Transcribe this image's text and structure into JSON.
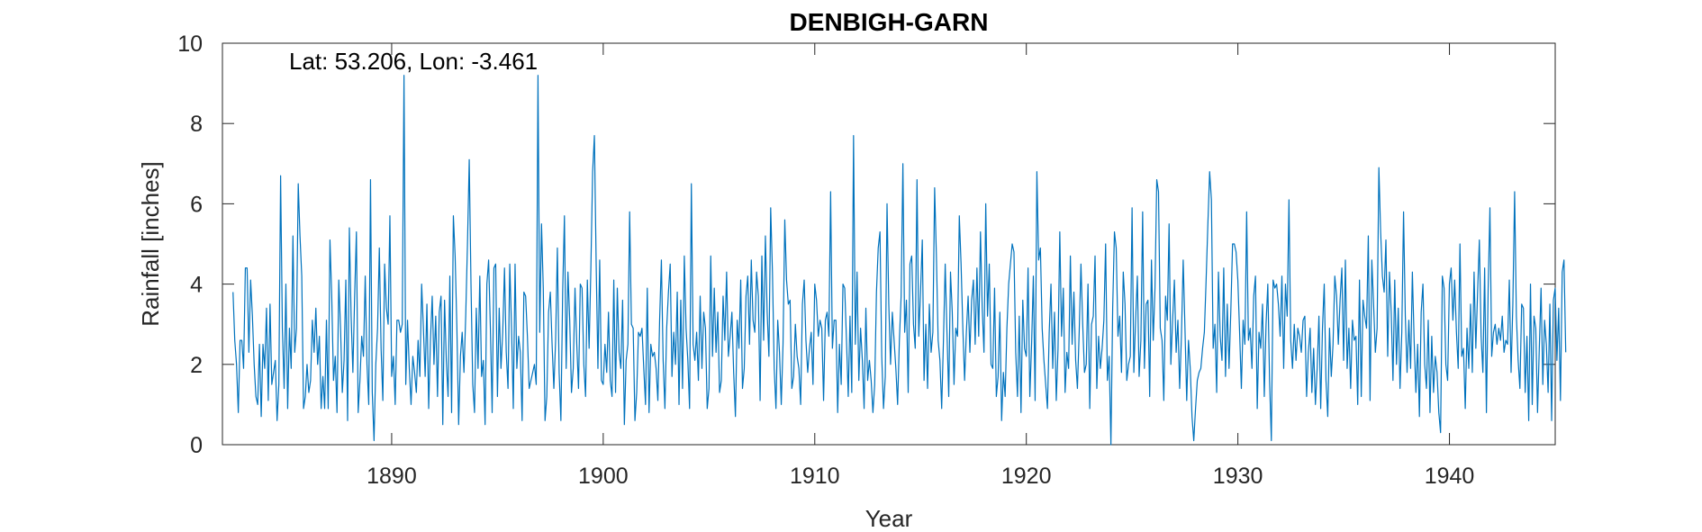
{
  "chart_data": {
    "type": "line",
    "title": "DENBIGH-GARN",
    "xlabel": "Year",
    "ylabel": "Rainfall [inches]",
    "annotation": "Lat: 53.206, Lon: -3.461",
    "xlim": [
      1882,
      1945
    ],
    "ylim": [
      0,
      10
    ],
    "xticks": [
      1890,
      1900,
      1910,
      1920,
      1930,
      1940
    ],
    "yticks": [
      0,
      2,
      4,
      6,
      8,
      10
    ],
    "grid": false,
    "line_color": "#0072BD",
    "series": [
      {
        "x_start": 1882.5,
        "x_step_years": 0.08333,
        "values": [
          3.8,
          2.6,
          2.0,
          0.8,
          2.6,
          2.6,
          1.9,
          4.4,
          4.4,
          2.3,
          4.1,
          3.2,
          2.0,
          1.2,
          1.0,
          2.5,
          0.7,
          2.5,
          1.9,
          3.4,
          1.1,
          3.5,
          1.5,
          1.8,
          2.1,
          0.6,
          1.5,
          6.7,
          2.9,
          1.4,
          4.0,
          0.9,
          2.9,
          1.9,
          5.2,
          2.3,
          2.9,
          6.5,
          5.2,
          4.2,
          0.9,
          1.2,
          2.0,
          1.3,
          1.6,
          3.1,
          2.3,
          3.4,
          2.0,
          2.7,
          0.9,
          1.7,
          0.9,
          3.1,
          0.9,
          5.1,
          3.7,
          1.6,
          2.2,
          0.8,
          4.1,
          2.9,
          1.3,
          2.1,
          4.1,
          0.6,
          5.4,
          3.2,
          1.8,
          3.7,
          5.3,
          0.8,
          1.6,
          2.7,
          2.2,
          4.2,
          2.0,
          1.0,
          6.6,
          1.3,
          0.1,
          2.0,
          2.9,
          4.9,
          2.4,
          1.1,
          4.5,
          3.4,
          3.0,
          5.7,
          1.7,
          2.2,
          1.0,
          3.1,
          3.1,
          2.8,
          3.0,
          9.2,
          1.5,
          3.1,
          1.9,
          1.0,
          2.2,
          1.8,
          1.3,
          2.6,
          1.7,
          4.0,
          2.9,
          1.7,
          3.5,
          0.9,
          2.6,
          3.7,
          2.0,
          3.2,
          1.2,
          3.3,
          3.7,
          0.5,
          3.6,
          2.1,
          1.2,
          4.2,
          0.8,
          5.7,
          4.7,
          2.9,
          0.5,
          2.2,
          2.8,
          1.8,
          3.2,
          5.0,
          7.1,
          4.0,
          1.5,
          0.8,
          3.4,
          1.9,
          4.2,
          1.7,
          2.1,
          0.5,
          4.0,
          4.6,
          2.9,
          0.8,
          4.4,
          4.5,
          1.2,
          3.4,
          1.9,
          2.8,
          4.4,
          2.3,
          1.4,
          4.5,
          2.9,
          0.9,
          4.5,
          1.9,
          2.7,
          2.3,
          0.6,
          3.8,
          3.7,
          2.7,
          1.4,
          1.6,
          1.8,
          2.0,
          1.5,
          9.2,
          2.8,
          5.5,
          3.9,
          0.6,
          1.2,
          3.3,
          3.8,
          2.5,
          1.4,
          2.6,
          4.9,
          1.8,
          0.6,
          3.8,
          5.7,
          1.9,
          4.3,
          3.1,
          1.3,
          1.9,
          3.9,
          2.5,
          1.4,
          4.0,
          3.9,
          2.0,
          1.2,
          4.1,
          2.4,
          4.4,
          6.8,
          7.7,
          4.5,
          1.9,
          4.6,
          1.6,
          1.5,
          2.5,
          1.8,
          3.3,
          1.6,
          1.2,
          4.1,
          1.3,
          3.9,
          2.3,
          1.9,
          3.6,
          0.5,
          2.1,
          2.5,
          5.8,
          3.0,
          2.9,
          0.6,
          1.3,
          2.8,
          2.7,
          2.9,
          1.9,
          1.0,
          3.9,
          0.8,
          2.5,
          2.2,
          2.3,
          1.9,
          1.1,
          3.1,
          4.6,
          2.1,
          0.9,
          2.9,
          3.8,
          4.5,
          1.7,
          2.8,
          2.0,
          3.8,
          1.0,
          3.6,
          1.4,
          4.7,
          2.9,
          2.1,
          0.9,
          6.5,
          2.5,
          2.1,
          2.8,
          1.6,
          3.7,
          1.9,
          3.3,
          2.9,
          0.9,
          1.4,
          4.7,
          2.2,
          3.9,
          2.3,
          3.3,
          1.3,
          1.6,
          3.7,
          2.6,
          4.3,
          2.2,
          2.7,
          3.3,
          1.8,
          0.7,
          3.1,
          2.4,
          4.1,
          1.4,
          1.9,
          3.7,
          4.2,
          2.5,
          4.6,
          3.1,
          2.8,
          4.3,
          3.7,
          1.1,
          4.7,
          2.6,
          5.2,
          3.3,
          2.2,
          5.9,
          4.3,
          1.9,
          0.9,
          3.1,
          2.3,
          1.0,
          2.5,
          5.6,
          4.1,
          3.5,
          3.6,
          1.4,
          1.7,
          3.0,
          2.2,
          1.9,
          1.0,
          3.5,
          4.1,
          2.6,
          1.8,
          2.4,
          2.8,
          1.5,
          4.0,
          3.6,
          2.7,
          3.1,
          2.9,
          1.1,
          3.1,
          3.3,
          2.7,
          6.3,
          2.4,
          3.1,
          3.1,
          0.8,
          2.5,
          1.5,
          4.0,
          3.9,
          2.6,
          1.2,
          3.2,
          1.3,
          7.7,
          2.5,
          4.3,
          1.6,
          2.9,
          2.1,
          0.9,
          3.4,
          1.6,
          2.1,
          1.6,
          0.8,
          1.5,
          3.8,
          4.9,
          5.3,
          2.2,
          0.9,
          1.7,
          6.0,
          3.5,
          2.0,
          3.3,
          2.6,
          1.9,
          1.0,
          2.6,
          3.7,
          7.0,
          2.8,
          3.6,
          1.3,
          4.5,
          4.7,
          3.0,
          2.4,
          6.6,
          2.7,
          3.8,
          5.1,
          1.6,
          3.0,
          1.4,
          3.5,
          2.3,
          2.8,
          6.4,
          4.7,
          2.6,
          2.1,
          0.9,
          2.6,
          4.5,
          2.8,
          1.2,
          4.3,
          3.3,
          1.5,
          2.9,
          2.7,
          5.7,
          4.5,
          2.9,
          1.6,
          2.8,
          3.7,
          2.3,
          3.6,
          4.1,
          2.5,
          4.4,
          2.7,
          5.3,
          3.4,
          2.3,
          6.0,
          3.2,
          4.5,
          2.0,
          1.9,
          3.9,
          1.2,
          1.7,
          3.3,
          0.6,
          1.8,
          1.2,
          2.9,
          4.0,
          4.5,
          5.0,
          4.8,
          2.3,
          1.2,
          3.2,
          0.8,
          3.6,
          2.4,
          2.2,
          4.4,
          1.2,
          2.5,
          4.2,
          1.1,
          6.8,
          4.6,
          4.9,
          2.9,
          2.1,
          1.5,
          0.9,
          2.8,
          4.0,
          1.9,
          3.3,
          1.1,
          2.4,
          5.3,
          2.7,
          3.9,
          1.3,
          2.3,
          1.9,
          4.7,
          2.5,
          3.8,
          2.1,
          1.4,
          2.8,
          4.5,
          3.0,
          1.8,
          2.0,
          4.0,
          0.9,
          3.0,
          3.2,
          4.7,
          1.4,
          2.7,
          1.9,
          2.4,
          3.1,
          5.0,
          1.6,
          2.2,
          0.0,
          3.4,
          5.3,
          4.9,
          2.7,
          3.2,
          1.8,
          4.3,
          3.5,
          1.6,
          2.0,
          2.2,
          5.9,
          1.8,
          3.1,
          4.2,
          1.7,
          2.6,
          5.8,
          1.9,
          3.5,
          3.6,
          1.2,
          4.6,
          2.6,
          3.9,
          6.6,
          6.3,
          2.9,
          2.6,
          1.1,
          3.7,
          3.1,
          5.5,
          2.0,
          3.1,
          4.1,
          2.3,
          3.1,
          1.4,
          2.7,
          4.6,
          2.9,
          1.1,
          2.6,
          1.9,
          0.7,
          0.1,
          0.9,
          1.6,
          1.8,
          1.9,
          2.4,
          2.8,
          4.1,
          5.5,
          6.8,
          6.1,
          2.4,
          3.0,
          1.3,
          4.3,
          2.7,
          2.1,
          4.4,
          1.7,
          3.5,
          1.9,
          3.3,
          5.0,
          5.0,
          4.8,
          4.1,
          2.8,
          1.4,
          3.1,
          2.5,
          5.8,
          2.6,
          2.9,
          1.9,
          3.7,
          4.2,
          0.9,
          2.8,
          2.4,
          3.5,
          1.2,
          3.0,
          4.0,
          1.6,
          0.1,
          4.1,
          3.9,
          4.0,
          3.5,
          2.7,
          4.2,
          1.9,
          4.0,
          3.2,
          6.1,
          2.6,
          1.9,
          3.0,
          2.1,
          2.9,
          2.7,
          2.3,
          3.1,
          3.2,
          1.2,
          2.3,
          2.9,
          1.3,
          2.4,
          1.0,
          1.9,
          3.2,
          0.9,
          2.9,
          4.0,
          1.6,
          0.7,
          2.9,
          1.7,
          2.5,
          4.2,
          3.7,
          2.5,
          3.6,
          4.4,
          2.1,
          4.6,
          1.9,
          2.9,
          1.4,
          3.1,
          2.6,
          2.7,
          1.0,
          4.1,
          1.2,
          3.6,
          3.2,
          2.9,
          5.2,
          1.1,
          4.6,
          3.5,
          2.3,
          2.9,
          6.9,
          5.3,
          4.2,
          3.8,
          5.1,
          2.2,
          4.3,
          3.3,
          1.6,
          4.1,
          2.0,
          3.4,
          1.4,
          2.8,
          5.8,
          3.2,
          1.8,
          3.1,
          1.9,
          4.3,
          2.6,
          1.3,
          2.5,
          0.7,
          3.3,
          4.0,
          2.0,
          1.4,
          3.1,
          0.8,
          2.7,
          1.3,
          2.2,
          1.8,
          0.8,
          0.3,
          4.2,
          3.9,
          2.0,
          1.6,
          4.0,
          4.4,
          3.1,
          4.1,
          2.8,
          1.9,
          5.0,
          2.2,
          2.4,
          0.9,
          2.9,
          1.9,
          3.5,
          1.8,
          4.3,
          2.4,
          3.8,
          5.1,
          2.7,
          1.8,
          4.4,
          0.8,
          3.9,
          5.9,
          2.2,
          2.8,
          3.0,
          2.5,
          2.9,
          2.6,
          3.2,
          2.3,
          2.6,
          2.5,
          4.1,
          1.8,
          3.5,
          6.3,
          3.2,
          2.1,
          1.4,
          3.5,
          3.4,
          1.3,
          2.7,
          0.6,
          4.0,
          1.0,
          3.2,
          2.9,
          0.8,
          2.4,
          3.9,
          1.5,
          3.1,
          2.5,
          1.3,
          3.5,
          0.6,
          3.6,
          3.9,
          2.1,
          3.4,
          1.1,
          4.3,
          4.6,
          2.3
        ]
      }
    ]
  }
}
